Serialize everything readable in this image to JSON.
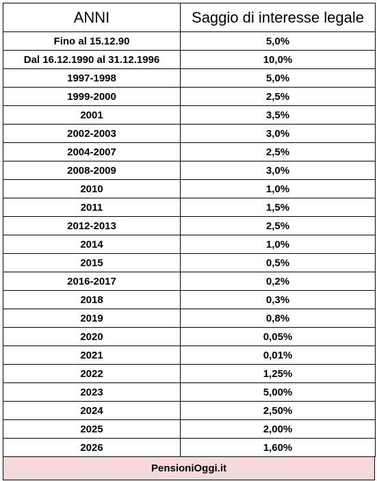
{
  "table": {
    "headers": [
      "ANNI",
      "Saggio di interesse legale"
    ],
    "rows": [
      [
        "Fino al 15.12.90",
        "5,0%"
      ],
      [
        "Dal 16.12.1990 al 31.12.1996",
        "10,0%"
      ],
      [
        "1997-1998",
        "5,0%"
      ],
      [
        "1999-2000",
        "2,5%"
      ],
      [
        "2001",
        "3,5%"
      ],
      [
        "2002-2003",
        "3,0%"
      ],
      [
        "2004-2007",
        "2,5%"
      ],
      [
        "2008-2009",
        "3,0%"
      ],
      [
        "2010",
        "1,0%"
      ],
      [
        "2011",
        "1,5%"
      ],
      [
        "2012-2013",
        "2,5%"
      ],
      [
        "2014",
        "1,0%"
      ],
      [
        "2015",
        "0,5%"
      ],
      [
        "2016-2017",
        "0,2%"
      ],
      [
        "2018",
        "0,3%"
      ],
      [
        "2019",
        "0,8%"
      ],
      [
        "2020",
        "0,05%"
      ],
      [
        "2021",
        "0,01%"
      ],
      [
        "2022",
        "1,25%"
      ],
      [
        "2023",
        "5,00%"
      ],
      [
        "2024",
        "2,50%"
      ],
      [
        "2025",
        "2,00%"
      ],
      [
        "2026",
        "1,60%"
      ]
    ]
  },
  "footer": {
    "text": "PensioniOggi.it",
    "background": "#f6d9da"
  }
}
